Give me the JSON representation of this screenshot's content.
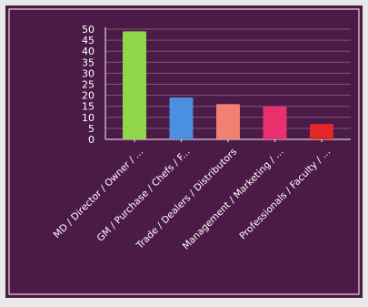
{
  "chart_data": {
    "type": "bar",
    "categories": [
      "MD / Director / Owner / ...",
      "GM / Purchase / Chefs / F...",
      "Trade / Dealers / Distributors",
      "Management / Marketing / ...",
      "Professionals / Faculty / ..."
    ],
    "values": [
      49,
      19,
      16,
      15,
      7
    ],
    "colors": [
      "#8fd64a",
      "#4a8fe0",
      "#f08070",
      "#e8306f",
      "#e02828"
    ],
    "yticks": [
      0,
      5,
      10,
      15,
      20,
      25,
      30,
      35,
      40,
      45,
      50
    ],
    "ylim": [
      0,
      50
    ],
    "grid": true,
    "title": "",
    "xlabel": "",
    "ylabel": ""
  },
  "theme": {
    "panel_color": "#4b1a47",
    "page_color": "#e9e9ea"
  }
}
